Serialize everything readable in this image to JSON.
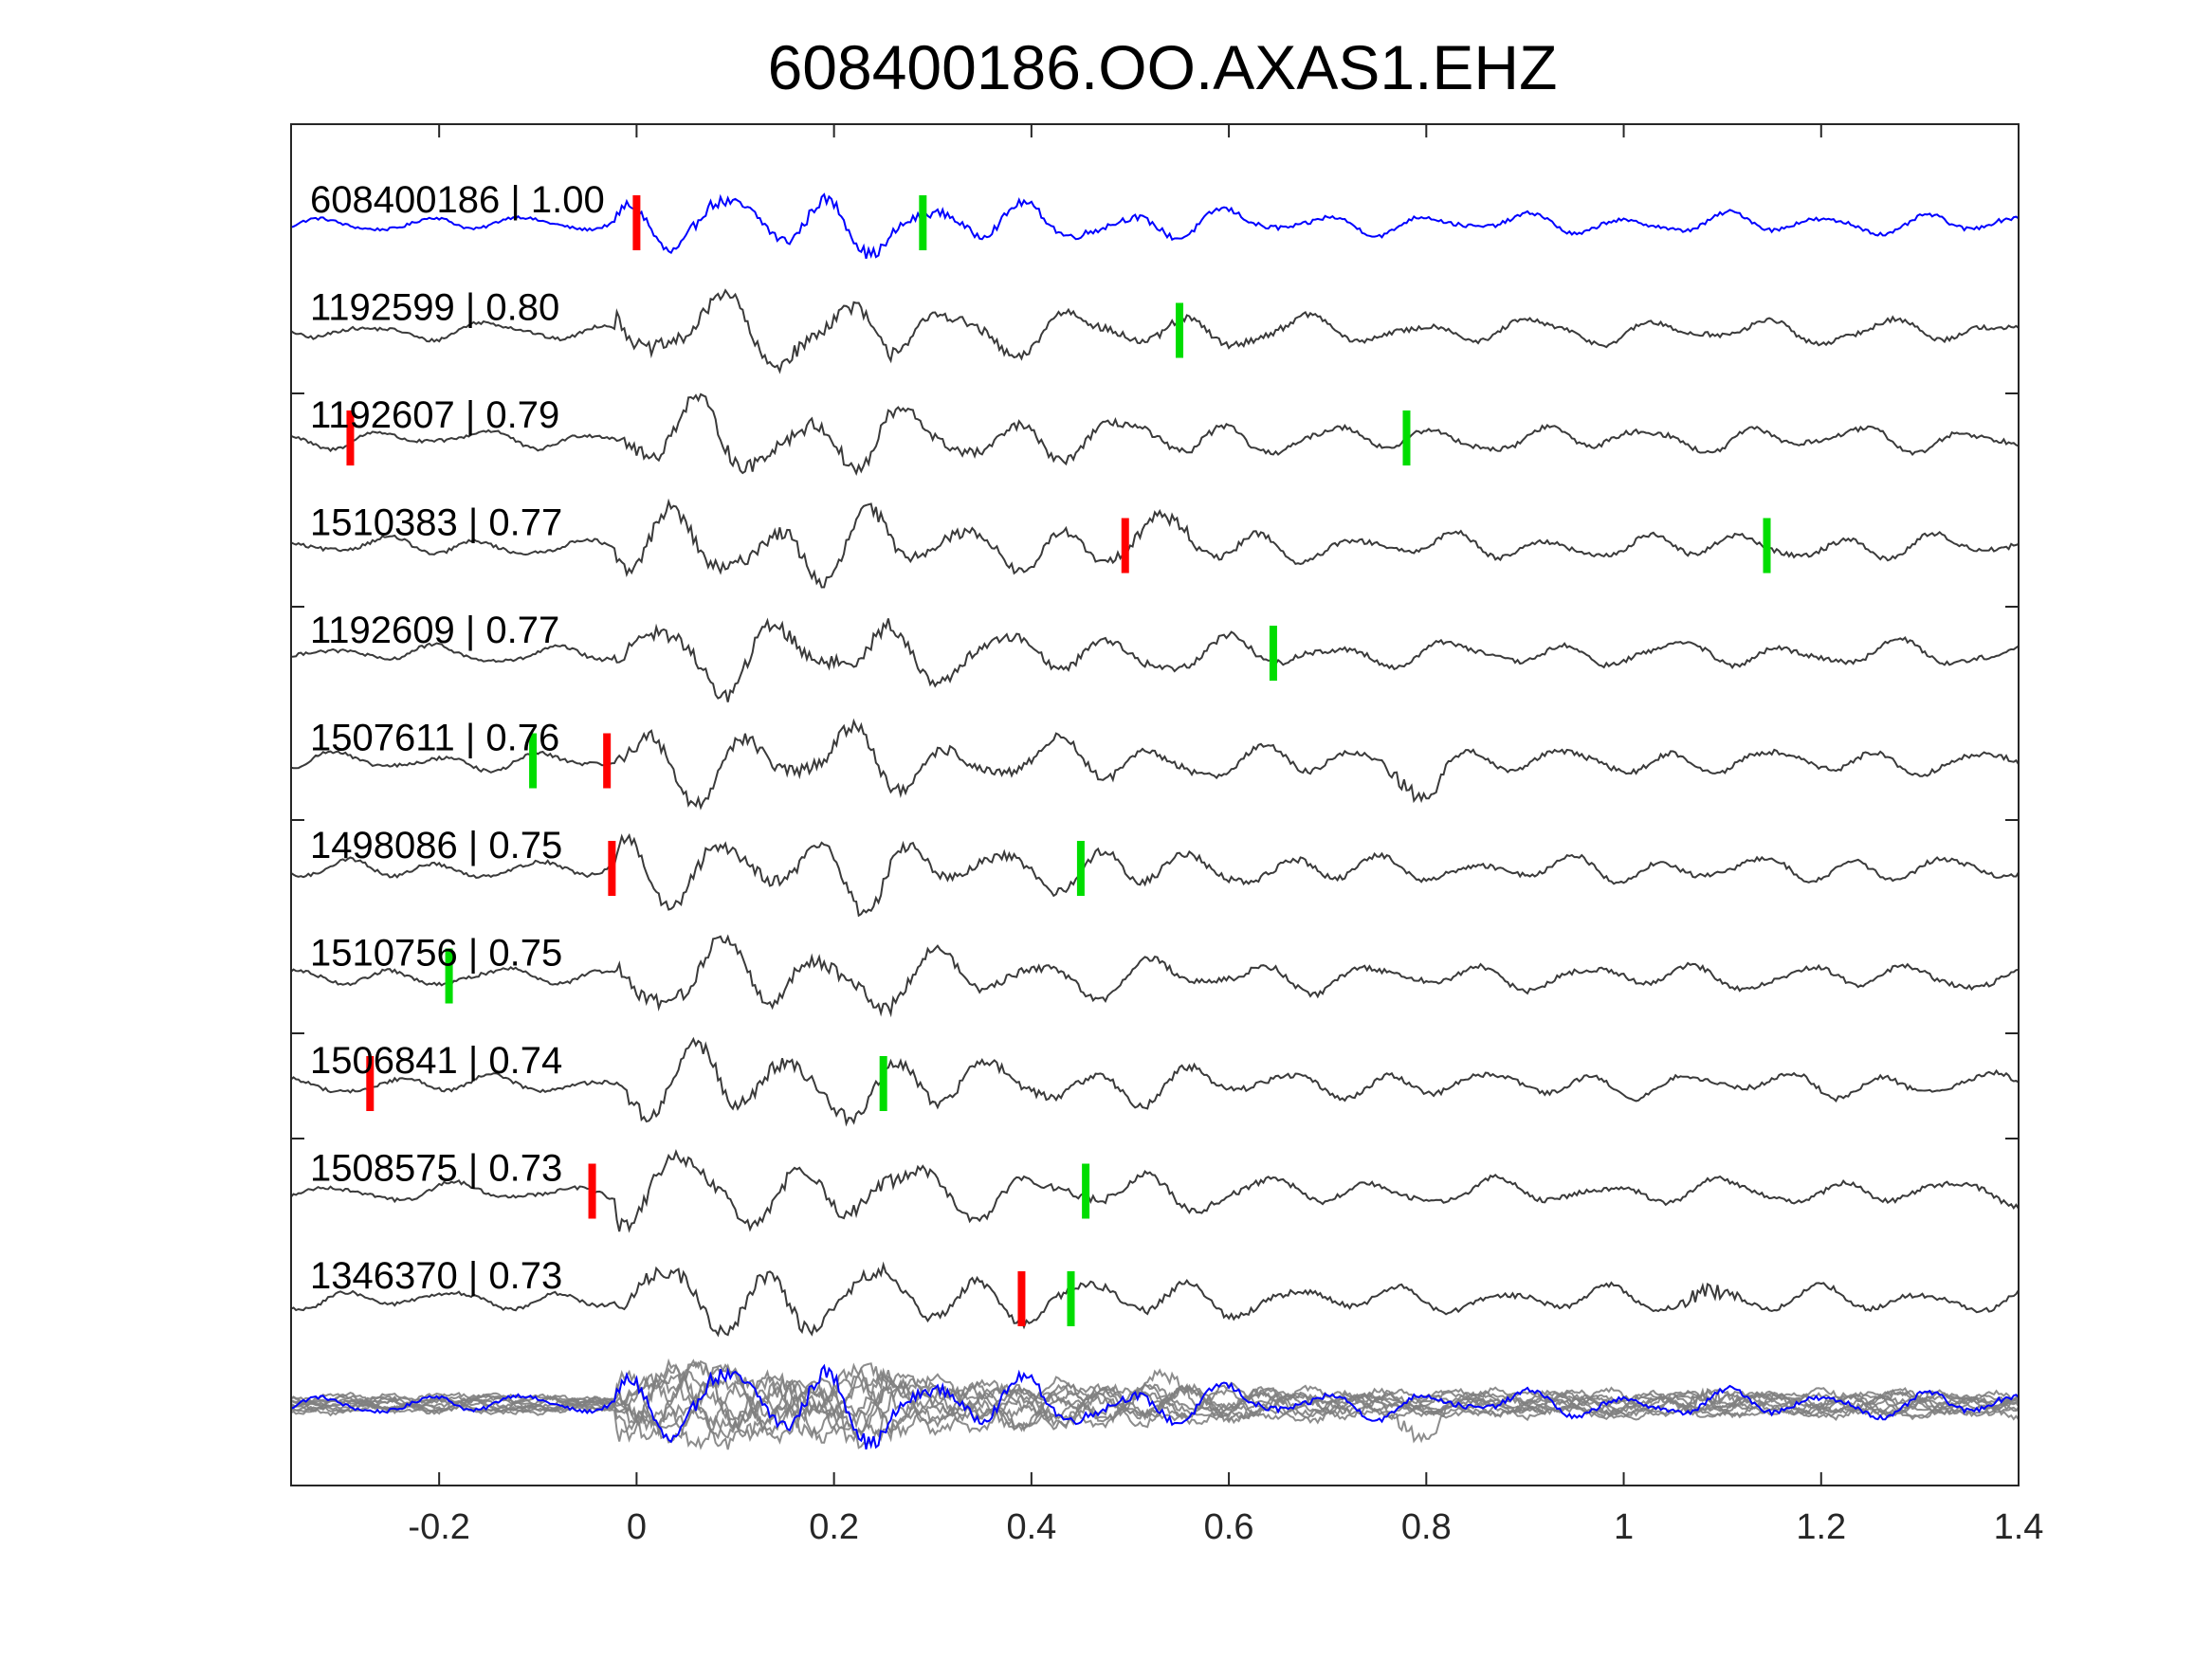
{
  "chart_data": {
    "type": "line",
    "title": "608400186.OO.AXAS1.EHZ",
    "xlabel": "",
    "ylabel": "",
    "xlim": [
      -0.35,
      1.4
    ],
    "xticks": [
      -0.2,
      0,
      0.2,
      0.4,
      0.6,
      0.8,
      1,
      1.2,
      1.4
    ],
    "xtick_labels": [
      "-0.2",
      "0",
      "0.2",
      "0.4",
      "0.6",
      "0.8",
      "1",
      "1.2",
      "1.4"
    ],
    "y_ticks": "none",
    "grid": false,
    "colors": {
      "reference": "#0000ff",
      "match": "#3a3a3a",
      "stack": "#808080",
      "p_pick": "#ff0000",
      "s_pick": "#00dd00",
      "axes": "#262626"
    },
    "traces": [
      {
        "id": "608400186",
        "cc": "1.00",
        "label": "608400186 | 1.00",
        "color": "#0000ff",
        "p_pick": 0.0,
        "s_pick": 0.29
      },
      {
        "id": "1192599",
        "cc": "0.80",
        "label": "1192599 | 0.80",
        "color": "#3a3a3a",
        "p_pick": null,
        "s_pick": 0.55
      },
      {
        "id": "1192607",
        "cc": "0.79",
        "label": "1192607 | 0.79",
        "color": "#3a3a3a",
        "p_pick": -0.29,
        "s_pick": 0.78
      },
      {
        "id": "1510383",
        "cc": "0.77",
        "label": "1510383 | 0.77",
        "color": "#3a3a3a",
        "p_pick": 0.495,
        "s_pick": 1.145
      },
      {
        "id": "1192609",
        "cc": "0.77",
        "label": "1192609 | 0.77",
        "color": "#3a3a3a",
        "p_pick": null,
        "s_pick": 0.645
      },
      {
        "id": "1507611",
        "cc": "0.76",
        "label": "1507611 | 0.76",
        "color": "#3a3a3a",
        "p_pick": -0.03,
        "s_pick": -0.105
      },
      {
        "id": "1498086",
        "cc": "0.75",
        "label": "1498086 | 0.75",
        "color": "#3a3a3a",
        "p_pick": -0.025,
        "s_pick": 0.45
      },
      {
        "id": "1510756",
        "cc": "0.75",
        "label": "1510756 | 0.75",
        "color": "#3a3a3a",
        "p_pick": null,
        "s_pick": -0.19
      },
      {
        "id": "1506841",
        "cc": "0.74",
        "label": "1506841 | 0.74",
        "color": "#3a3a3a",
        "p_pick": -0.27,
        "s_pick": 0.25
      },
      {
        "id": "1508575",
        "cc": "0.73",
        "label": "1508575 | 0.73",
        "color": "#3a3a3a",
        "p_pick": -0.045,
        "s_pick": 0.455
      },
      {
        "id": "1346370",
        "cc": "0.73",
        "label": "1346370 | 0.73",
        "color": "#3a3a3a",
        "p_pick": 0.39,
        "s_pick": 0.44
      }
    ]
  }
}
